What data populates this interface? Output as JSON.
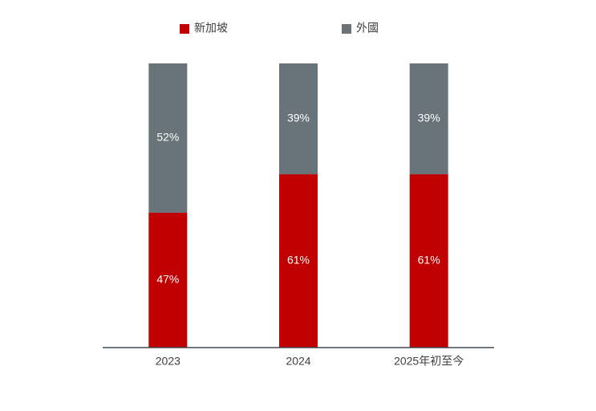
{
  "chart_data": {
    "type": "stacked-percent-bar",
    "categories": [
      "2023",
      "2024",
      "2025年初至今"
    ],
    "series": [
      {
        "name": "新加坡",
        "color": "#c00000",
        "values": [
          47,
          61,
          61
        ],
        "value_labels": [
          "47%",
          "61%",
          "61%"
        ]
      },
      {
        "name": "外國",
        "color": "#68737a",
        "values": [
          52,
          39,
          39
        ],
        "value_labels": [
          "52%",
          "39%",
          "39%"
        ]
      }
    ],
    "legend": "top"
  }
}
